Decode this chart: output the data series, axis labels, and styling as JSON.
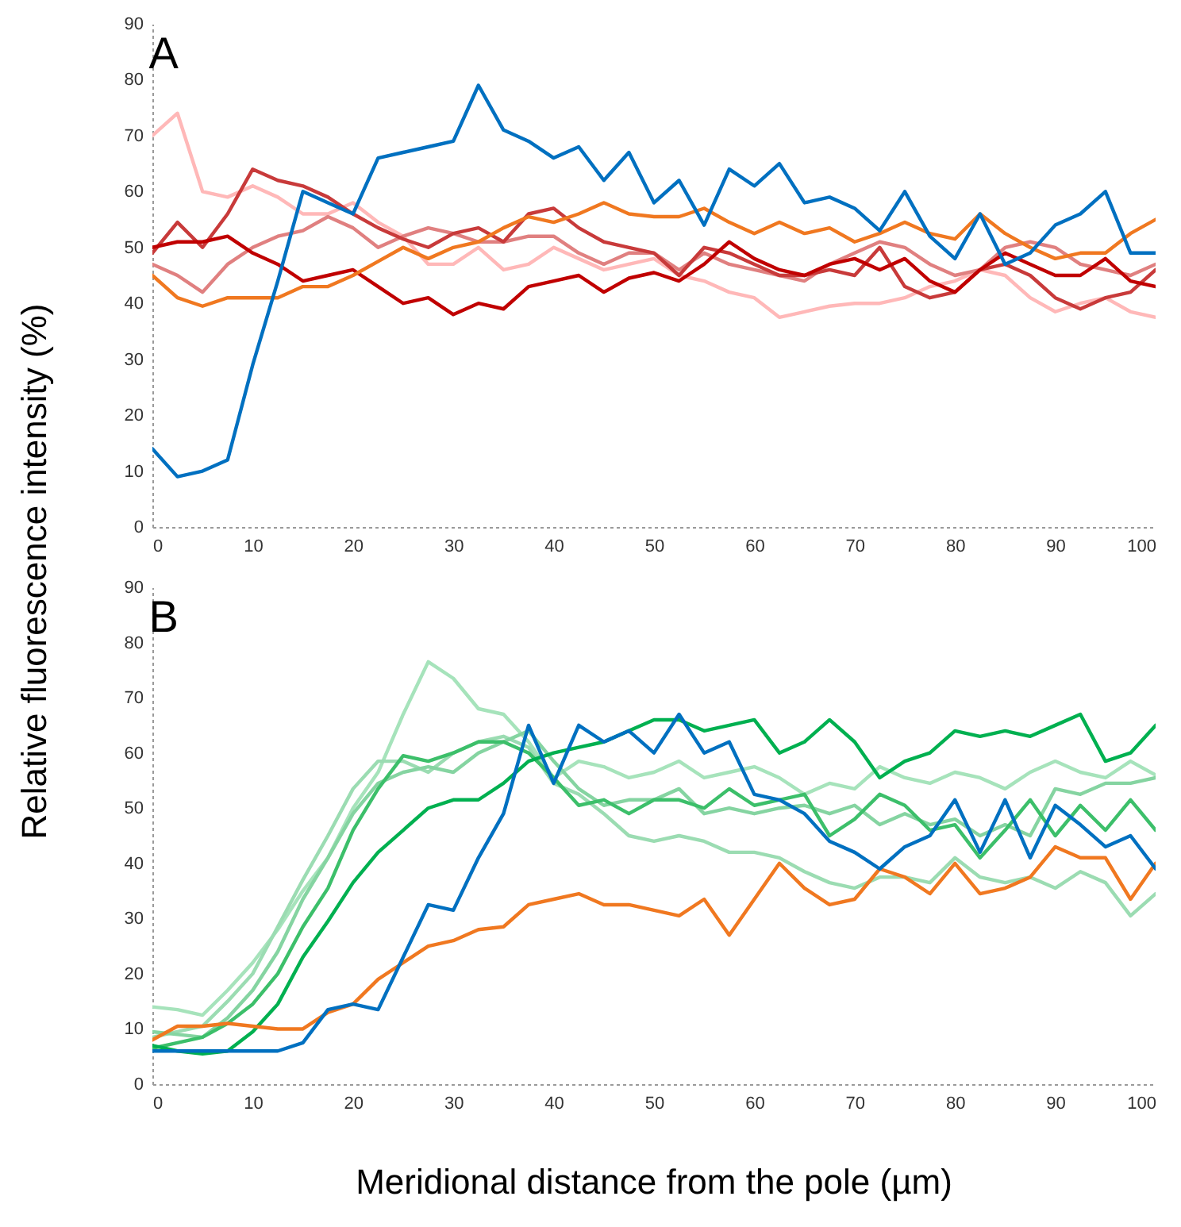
{
  "chart_data": [
    {
      "type": "line",
      "title": "A",
      "ylabel": "Relative fluorescence intensity  (%)",
      "x": [
        0,
        2.5,
        5,
        7.5,
        10,
        12.5,
        15,
        17.5,
        20,
        22.5,
        25,
        27.5,
        30,
        32.5,
        35,
        37.5,
        40,
        42.5,
        45,
        47.5,
        50,
        52.5,
        55,
        57.5,
        60,
        62.5,
        65,
        67.5,
        70,
        72.5,
        75,
        77.5,
        80,
        82.5,
        85,
        87.5,
        90,
        92.5,
        95,
        97.5,
        100
      ],
      "xlim": [
        0,
        100
      ],
      "xticks": [
        0,
        10,
        20,
        30,
        40,
        50,
        60,
        70,
        80,
        90,
        100
      ],
      "ylim": [
        0,
        90
      ],
      "yticks": [
        0,
        10,
        20,
        30,
        40,
        50,
        60,
        70,
        80,
        90
      ],
      "marker": "none",
      "line_style": "solid",
      "series": [
        {
          "color": "#ffb8b8",
          "values": [
            70,
            74,
            60,
            59,
            61,
            59,
            56,
            56,
            58,
            54.5,
            52,
            47,
            47,
            50,
            46,
            47,
            50,
            48,
            46,
            47,
            48,
            45,
            44,
            42,
            41,
            37.5,
            38.5,
            39.5,
            40,
            40,
            41,
            43,
            44,
            46,
            45,
            41,
            38.5,
            40,
            41,
            38.5,
            37.5
          ]
        },
        {
          "color": "#e08080",
          "values": [
            47,
            45,
            42,
            47,
            50,
            52,
            53,
            55.5,
            53.5,
            50,
            52,
            53.5,
            52.5,
            51,
            51,
            52,
            52,
            49,
            47,
            49,
            49,
            46,
            49,
            47,
            46,
            45,
            44,
            47,
            49,
            51,
            50,
            47,
            45,
            46,
            50,
            51,
            50,
            47,
            46,
            45,
            47
          ]
        },
        {
          "color": "#c83a3a",
          "values": [
            49,
            54.5,
            50,
            56,
            64,
            62,
            61,
            59,
            56,
            53.5,
            51.5,
            50,
            52.5,
            53.5,
            51,
            56,
            57,
            53.5,
            51,
            50,
            49,
            45,
            50,
            49,
            47,
            45,
            45,
            46,
            45,
            50,
            43,
            41,
            42,
            46,
            47,
            45,
            41,
            39,
            41,
            42,
            46
          ]
        },
        {
          "color": "#c00000",
          "values": [
            50,
            51,
            51,
            52,
            49,
            47,
            44,
            45,
            46,
            43,
            40,
            41,
            38,
            40,
            39,
            43,
            44,
            45,
            42,
            44.5,
            45.5,
            44,
            47,
            51,
            48,
            46,
            45,
            47,
            48,
            46,
            48,
            44,
            42,
            46,
            49,
            47,
            45,
            45,
            48,
            44,
            43
          ]
        },
        {
          "color": "#f07820",
          "values": [
            45,
            41,
            39.5,
            41,
            41,
            41,
            43,
            43,
            45,
            47.5,
            50,
            48,
            50,
            51,
            53.5,
            55.5,
            54.5,
            56,
            58,
            56,
            55.5,
            55.5,
            57,
            54.5,
            52.5,
            54.5,
            52.5,
            53.5,
            51,
            52.5,
            54.5,
            52.5,
            51.5,
            56,
            52.5,
            50,
            48,
            49,
            49,
            52.5,
            55
          ]
        },
        {
          "color": "#0070c0",
          "values": [
            14,
            9,
            10,
            12,
            29,
            44,
            60,
            58,
            56,
            66,
            67,
            68,
            69,
            79,
            71,
            69,
            66,
            68,
            62,
            67,
            58,
            62,
            54,
            64,
            61,
            65,
            58,
            59,
            57,
            53,
            60,
            52,
            48,
            56,
            47,
            49,
            54,
            56,
            60,
            49,
            49
          ]
        }
      ]
    },
    {
      "type": "line",
      "title": "B",
      "xlabel": "Meridional distance from the pole (µm)",
      "x": [
        0,
        2.5,
        5,
        7.5,
        10,
        12.5,
        15,
        17.5,
        20,
        22.5,
        25,
        27.5,
        30,
        32.5,
        35,
        37.5,
        40,
        42.5,
        45,
        47.5,
        50,
        52.5,
        55,
        57.5,
        60,
        62.5,
        65,
        67.5,
        70,
        72.5,
        75,
        77.5,
        80,
        82.5,
        85,
        87.5,
        90,
        92.5,
        95,
        97.5,
        100
      ],
      "xlim": [
        0,
        100
      ],
      "xticks": [
        0,
        10,
        20,
        30,
        40,
        50,
        60,
        70,
        80,
        90,
        100
      ],
      "ylim": [
        0,
        90
      ],
      "yticks": [
        0,
        10,
        20,
        30,
        40,
        50,
        60,
        70,
        80,
        90
      ],
      "marker": "none",
      "line_style": "solid",
      "series": [
        {
          "color": "#a6e3bb",
          "values": [
            14,
            13.5,
            12.5,
            17,
            22,
            28,
            35,
            41,
            50,
            56.5,
            67,
            76.5,
            73.5,
            68,
            67,
            62,
            55.5,
            58.5,
            57.5,
            55.5,
            56.5,
            58.5,
            55.5,
            56.5,
            57.5,
            55.5,
            52.5,
            54.5,
            53.5,
            57.5,
            55.5,
            54.5,
            56.5,
            55.5,
            53.5,
            56.5,
            58.5,
            56.5,
            55.5,
            58.5,
            56
          ]
        },
        {
          "color": "#9bdcb2",
          "values": [
            8.5,
            9.5,
            10.5,
            15,
            20,
            28.5,
            37,
            45,
            53.5,
            58.5,
            58.5,
            56.5,
            60,
            62,
            63,
            61,
            54.5,
            52.5,
            49,
            45,
            44,
            45,
            44,
            42,
            42,
            41,
            38.5,
            36.5,
            35.5,
            37.5,
            37.5,
            36.5,
            41,
            37.5,
            36.5,
            37.5,
            35.5,
            38.5,
            36.5,
            30.5,
            34.5
          ]
        },
        {
          "color": "#85d4a1",
          "values": [
            9.5,
            9,
            8.5,
            12,
            17,
            24,
            33.5,
            41,
            49,
            54.5,
            56.5,
            57.5,
            56.5,
            60,
            62,
            64,
            58.5,
            53.5,
            50.5,
            51.5,
            51.5,
            53.5,
            49,
            50,
            49,
            50,
            50.5,
            49,
            50.5,
            47,
            49,
            47,
            48,
            45,
            47,
            45,
            53.5,
            52.5,
            54.5,
            54.5,
            55.5
          ]
        },
        {
          "color": "#3cbf6a",
          "values": [
            6.5,
            7.5,
            8.5,
            11,
            14.5,
            20,
            28.5,
            35.5,
            46,
            53.5,
            59.5,
            58.5,
            60,
            62,
            62,
            60,
            55.5,
            50.5,
            51.5,
            49,
            51.5,
            51.5,
            50,
            53.5,
            50.5,
            51.5,
            52.5,
            45,
            48,
            52.5,
            50.5,
            46,
            47,
            41,
            46,
            51.5,
            45,
            50.5,
            46,
            51.5,
            46
          ]
        },
        {
          "color": "#00b050",
          "values": [
            7,
            6,
            5.5,
            6,
            9.5,
            14.5,
            23,
            29.5,
            36.5,
            42,
            46,
            50,
            51.5,
            51.5,
            54.5,
            58.5,
            60,
            61,
            62,
            64,
            66,
            66,
            64,
            65,
            66,
            60,
            62,
            66,
            62,
            55.5,
            58.5,
            60,
            64,
            63,
            64,
            63,
            65,
            67,
            58.5,
            60,
            65
          ]
        },
        {
          "color": "#f07820",
          "values": [
            8,
            10.5,
            10.5,
            11,
            10.5,
            10,
            10,
            13,
            14.5,
            19,
            22,
            25,
            26,
            28,
            28.5,
            32.5,
            33.5,
            34.5,
            32.5,
            32.5,
            31.5,
            30.5,
            33.5,
            27,
            33.5,
            40,
            35.5,
            32.5,
            33.5,
            39,
            37.5,
            34.5,
            40,
            34.5,
            35.5,
            37.5,
            43,
            41,
            41,
            33.5,
            40
          ]
        },
        {
          "color": "#0070c0",
          "values": [
            6,
            6,
            6,
            6,
            6,
            6,
            7.5,
            13.5,
            14.5,
            13.5,
            23,
            32.5,
            31.5,
            41,
            49,
            65,
            54.5,
            65,
            62,
            64,
            60,
            67,
            60,
            62,
            52.5,
            51.5,
            49,
            44,
            42,
            39,
            43,
            45,
            51.5,
            42,
            51.5,
            41,
            50.5,
            47,
            43,
            45,
            39
          ]
        }
      ]
    }
  ]
}
